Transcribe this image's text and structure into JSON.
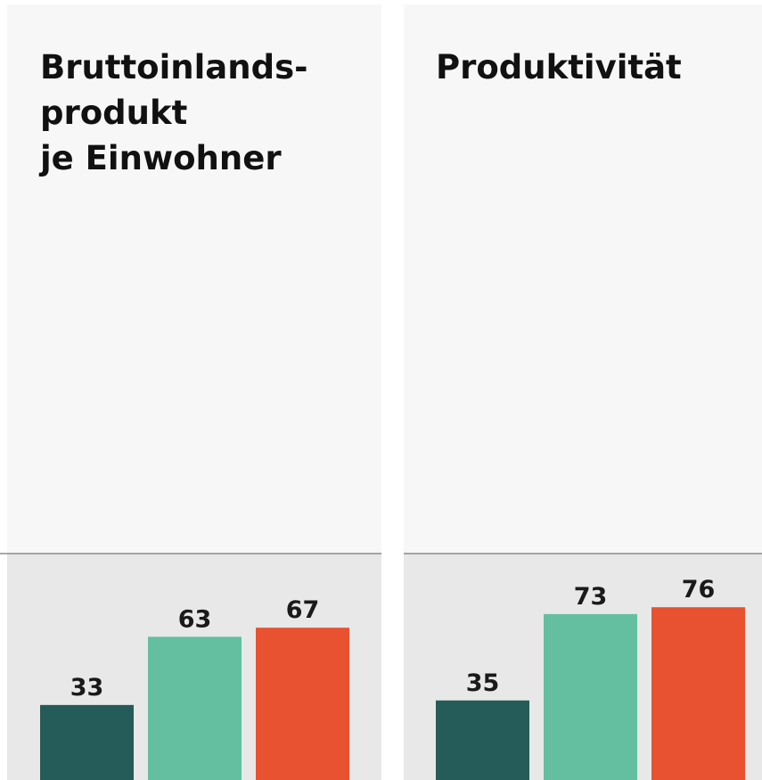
{
  "chart_data": [
    {
      "type": "bar",
      "title": [
        "Bruttoinlands-",
        "produkt",
        "je Einwohner"
      ],
      "values": [
        33,
        63,
        67
      ],
      "colors": [
        "#255b58",
        "#63bfa0",
        "#e85230"
      ]
    },
    {
      "type": "bar",
      "title": [
        "Produktivität"
      ],
      "values": [
        35,
        73,
        76
      ],
      "colors": [
        "#255b58",
        "#63bfa0",
        "#e85230"
      ]
    }
  ]
}
